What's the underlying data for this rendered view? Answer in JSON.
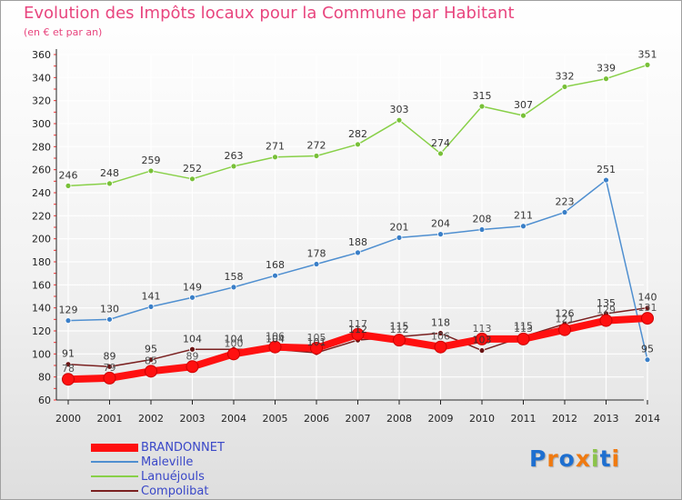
{
  "header": {
    "title": "Evolution des Impôts locaux pour la Commune par Habitant",
    "subtitle": "(en € et par an)"
  },
  "logo": {
    "text": "Proxiti",
    "colors": [
      "#1e6fd0",
      "#f07a10",
      "#1e6fd0",
      "#f07a10",
      "#8bc34a",
      "#1e6fd0",
      "#f07a10"
    ]
  },
  "colors": {
    "title": "#e8457e",
    "legend_text": "#3a48c8",
    "axis": "#222222",
    "grid": "#ffffff"
  },
  "chart_data": {
    "type": "line",
    "title": "Evolution des Impôts locaux pour la Commune par Habitant",
    "subtitle": "(en € et par an)",
    "x": [
      "2000",
      "2001",
      "2002",
      "2003",
      "2004",
      "2005",
      "2006",
      "2007",
      "2008",
      "2009",
      "2010",
      "2011",
      "2012",
      "2013",
      "2014"
    ],
    "ylim": [
      60,
      360
    ],
    "yticks": [
      60,
      80,
      100,
      120,
      140,
      160,
      180,
      200,
      220,
      240,
      260,
      280,
      300,
      320,
      340,
      360
    ],
    "grid": true,
    "legend_position": "bottom-left",
    "series": [
      {
        "name": "BRANDONNET",
        "color": "#ff1010",
        "values": [
          78,
          79,
          85,
          89,
          100,
          106,
          105,
          117,
          112,
          106,
          113,
          113,
          121,
          129,
          131
        ]
      },
      {
        "name": "Maleville",
        "color": "#4f8fd0",
        "values": [
          129,
          130,
          141,
          149,
          158,
          168,
          178,
          188,
          201,
          204,
          208,
          211,
          223,
          251,
          95
        ]
      },
      {
        "name": "Lanuéjouls",
        "color": "#88d048",
        "values": [
          246,
          248,
          259,
          252,
          263,
          271,
          272,
          282,
          303,
          274,
          315,
          307,
          332,
          339,
          351
        ]
      },
      {
        "name": "Compolibat",
        "color": "#7a2020",
        "values": [
          91,
          89,
          95,
          104,
          104,
          104,
          101,
          112,
          115,
          118,
          103,
          115,
          126,
          135,
          140
        ]
      }
    ]
  }
}
